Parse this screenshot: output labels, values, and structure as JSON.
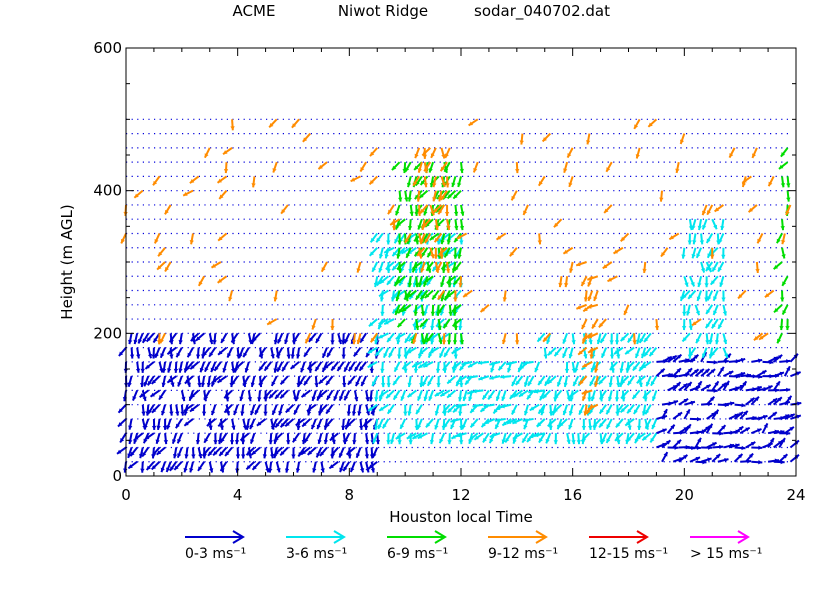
{
  "header": {
    "site": "ACME",
    "location": "Niwot Ridge",
    "filename": "sodar_040702.dat"
  },
  "chart_data": {
    "type": "scatter",
    "subtype": "wind-vector barb plot (arrows)",
    "title": "",
    "xlabel": "Houston local Time",
    "ylabel": "Height (m AGL)",
    "xlim": [
      0,
      24
    ],
    "ylim": [
      0,
      600
    ],
    "x_ticks": [
      0,
      4,
      8,
      12,
      16,
      20,
      24
    ],
    "x_tick_labels": [
      "0",
      "4",
      "8",
      "12",
      "16",
      "20",
      "24"
    ],
    "y_ticks": [
      0,
      200,
      400,
      600
    ],
    "y_tick_labels": [
      "0",
      "200",
      "400",
      "600"
    ],
    "grid": "dotted blue sampling grid",
    "sample_heights_m": {
      "start": 20,
      "end": 500,
      "step": 20
    },
    "sample_times_h": {
      "start": 0,
      "end": 23.8,
      "step": 0.2
    },
    "speed_classes": [
      {
        "name": "0-3  ms⁻¹",
        "min": 0,
        "max": 3,
        "color": "#0000cc"
      },
      {
        "name": "3-6  ms⁻¹",
        "min": 3,
        "max": 6,
        "color": "#00e5ee"
      },
      {
        "name": "6-9  ms⁻¹",
        "min": 6,
        "max": 9,
        "color": "#00dd00"
      },
      {
        "name": "9-12  ms⁻¹",
        "min": 9,
        "max": 12,
        "color": "#ff8c00"
      },
      {
        "name": "12-15 ms⁻¹",
        "min": 12,
        "max": 15,
        "color": "#ee0000"
      },
      {
        "name": "> 15 ms⁻¹",
        "min": 15,
        "max": 99,
        "color": "#ff00ff"
      }
    ],
    "regions": [
      {
        "t": [
          0,
          9
        ],
        "h": [
          20,
          200
        ],
        "class": 0,
        "dir_deg": 200
      },
      {
        "t": [
          9,
          12
        ],
        "h": [
          60,
          340
        ],
        "class": 1,
        "dir_deg": 210
      },
      {
        "t": [
          9.8,
          12
        ],
        "h": [
          200,
          440
        ],
        "class": 2,
        "dir_deg": 200
      },
      {
        "t": [
          10.5,
          11.6
        ],
        "h": [
          300,
          460
        ],
        "class": 3,
        "dir_deg": 195
      },
      {
        "t": [
          12,
          15
        ],
        "h": [
          60,
          160
        ],
        "class": 1,
        "dir_deg": 230
      },
      {
        "t": [
          15,
          19
        ],
        "h": [
          60,
          200
        ],
        "class": 1,
        "dir_deg": 200
      },
      {
        "t": [
          16.5,
          17
        ],
        "h": [
          100,
          300
        ],
        "class": 3,
        "dir_deg": 220
      },
      {
        "t": [
          19,
          23.8
        ],
        "h": [
          20,
          170
        ],
        "class": 0,
        "dir_deg": 60
      },
      {
        "t": [
          20,
          21.4
        ],
        "h": [
          180,
          360
        ],
        "class": 1,
        "dir_deg": 190
      },
      {
        "t": [
          23.5,
          23.8
        ],
        "h": [
          200,
          480
        ],
        "class": 2,
        "dir_deg": 200
      },
      {
        "t": [
          0,
          23.8
        ],
        "h": [
          200,
          500
        ],
        "class": 3,
        "dir_deg": 210,
        "sparse": true
      }
    ]
  },
  "legend_labels": [
    "0-3  ms⁻¹",
    "3-6  ms⁻¹",
    "6-9  ms⁻¹",
    "9-12  ms⁻¹",
    "12-15 ms⁻¹",
    "> 15 ms⁻¹"
  ]
}
